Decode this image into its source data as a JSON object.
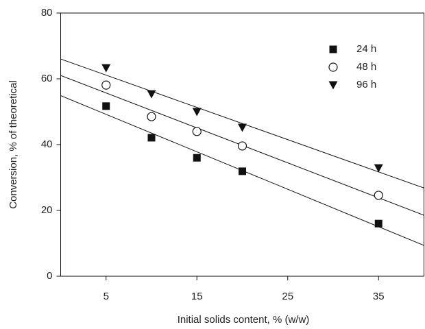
{
  "chart_data": {
    "type": "scatter",
    "xlabel": "Initial solids content, % (w/w)",
    "ylabel": "Conversion, % of theoretical",
    "x": [
      5,
      10,
      15,
      20,
      35
    ],
    "series": [
      {
        "name": "24 h",
        "color": "#111111",
        "marker": "square",
        "values": [
          51.7,
          42.1,
          36.0,
          31.9,
          16.0
        ]
      },
      {
        "name": "48 h",
        "color": "#111111",
        "marker": "open-circle",
        "values": [
          58.1,
          48.5,
          44.0,
          39.6,
          24.6
        ]
      },
      {
        "name": "96 h",
        "color": "#111111",
        "marker": "triangle-down",
        "values": [
          63.3,
          55.4,
          50.0,
          45.2,
          32.9
        ]
      }
    ],
    "xlim": [
      0,
      40
    ],
    "xticks": [
      5,
      15,
      25,
      35
    ],
    "ylim": [
      0,
      80
    ],
    "yticks": [
      0,
      20,
      40,
      60,
      80
    ],
    "fit_lines": true,
    "legend": "upper right"
  }
}
